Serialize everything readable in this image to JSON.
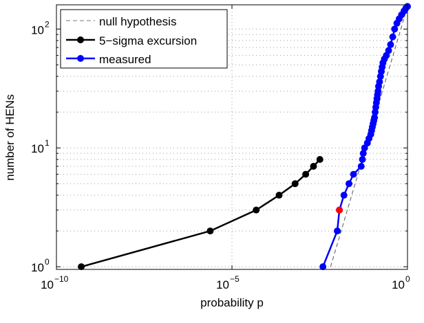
{
  "chart_data": {
    "type": "line",
    "xscale": "log",
    "yscale": "log",
    "xlabel": "probability p",
    "ylabel": "number of HENs",
    "xlim": [
      1e-10,
      1
    ],
    "ylim": [
      0.95,
      160
    ],
    "grid": true,
    "legend_position": "top-left",
    "x_ticks": [
      {
        "v": 1e-10,
        "base": "10",
        "exp": "−10"
      },
      {
        "v": 1e-05,
        "base": "10",
        "exp": "−5"
      },
      {
        "v": 1,
        "base": "10",
        "exp": "0"
      }
    ],
    "y_ticks": [
      {
        "v": 1,
        "base": "10",
        "exp": "0"
      },
      {
        "v": 10,
        "base": "10",
        "exp": "1"
      },
      {
        "v": 100,
        "base": "10",
        "exp": "2"
      }
    ],
    "series": [
      {
        "name": "null hypothesis",
        "color": "#555555",
        "style": "dashed",
        "x": [
          0.00645,
          1.0
        ],
        "y": [
          1,
          155
        ]
      },
      {
        "name": "5−sigma excursion",
        "color": "#000000",
        "style": "solid-markers",
        "x": [
          5.1e-10,
          2.4e-06,
          4.9e-05,
          0.00022,
          0.00063,
          0.00126,
          0.0021,
          0.0032
        ],
        "y": [
          1,
          2,
          3,
          4,
          5,
          6,
          7,
          8
        ]
      },
      {
        "name": "measured",
        "color": "#0000ff",
        "style": "solid-markers",
        "x": [
          0.0039,
          0.01,
          0.0115,
          0.0155,
          0.0215,
          0.029,
          0.048,
          0.052,
          0.055,
          0.06,
          0.072,
          0.08,
          0.09,
          0.095,
          0.1,
          0.105,
          0.11,
          0.115,
          0.12,
          0.125,
          0.13,
          0.135,
          0.14,
          0.145,
          0.15,
          0.16,
          0.17,
          0.18,
          0.19,
          0.2,
          0.22,
          0.25,
          0.29,
          0.33,
          0.38,
          0.43,
          0.5,
          0.58,
          0.68,
          0.8,
          0.9,
          1.0
        ],
        "y": [
          1,
          2,
          3,
          4,
          5,
          6,
          7,
          8,
          9,
          10,
          11,
          12,
          13,
          14,
          15,
          16,
          17,
          18,
          20,
          22,
          24,
          26,
          28,
          30,
          33,
          36,
          40,
          44,
          48,
          52,
          56,
          60,
          66,
          74,
          86,
          100,
          112,
          122,
          132,
          142,
          150,
          155
        ]
      },
      {
        "name": "highlighted point",
        "color": "#ff0000",
        "style": "marker",
        "x": [
          0.0115
        ],
        "y": [
          3
        ]
      }
    ],
    "legend": [
      "null hypothesis",
      "5−sigma excursion",
      "measured"
    ]
  }
}
